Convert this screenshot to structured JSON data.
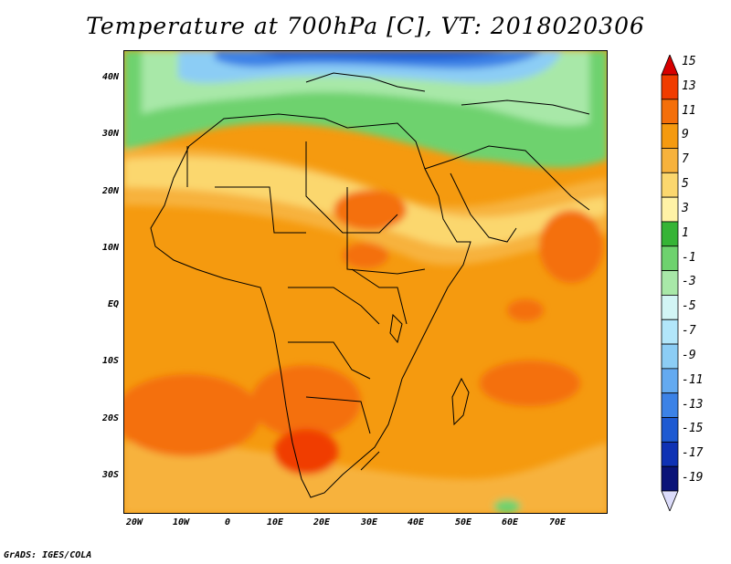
{
  "title": "Temperature at 700hPa [C], VT: 2018020306",
  "credit": "GrADS: IGES/COLA",
  "lat_labels": [
    "40N",
    "30N",
    "20N",
    "10N",
    "EQ",
    "10S",
    "20S",
    "30S"
  ],
  "lon_labels": [
    "20W",
    "10W",
    "0",
    "10E",
    "20E",
    "30E",
    "40E",
    "50E",
    "60E",
    "70E"
  ],
  "legend": {
    "labels": [
      "15",
      "13",
      "11",
      "9",
      "7",
      "5",
      "3",
      "1",
      "-1",
      "-3",
      "-5",
      "-7",
      "-9",
      "-11",
      "-13",
      "-15",
      "-17",
      "-19"
    ],
    "colors": [
      "#d70000",
      "#f03c00",
      "#f46f0a",
      "#f59a0f",
      "#f7b23c",
      "#fbd76e",
      "#fff2a6",
      "#36b436",
      "#6ed26e",
      "#a8e8a8",
      "#d2f5f5",
      "#b2e6fa",
      "#8ccdf5",
      "#64aaf0",
      "#3c82e6",
      "#1e5ad2",
      "#0f32b4",
      "#0a1478",
      "#dcdcfa"
    ]
  }
}
